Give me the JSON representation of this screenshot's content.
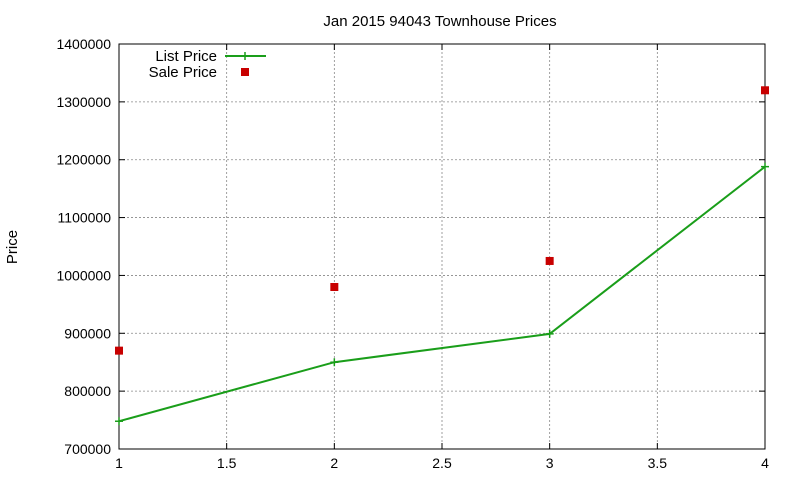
{
  "chart_data": {
    "type": "line",
    "title": "Jan 2015 94043 Townhouse Prices",
    "xlabel": "",
    "ylabel": "Price",
    "xlim": [
      1,
      4
    ],
    "ylim": [
      700000,
      1400000
    ],
    "xticks": [
      1,
      1.5,
      2,
      2.5,
      3,
      3.5,
      4
    ],
    "xtick_labels": [
      "1",
      "1.5",
      "2",
      "2.5",
      "3",
      "3.5",
      "4"
    ],
    "yticks": [
      700000,
      800000,
      900000,
      1000000,
      1100000,
      1200000,
      1300000,
      1400000
    ],
    "ytick_labels": [
      "700000",
      "800000",
      "900000",
      "1000000",
      "1100000",
      "1200000",
      "1300000",
      "1400000"
    ],
    "grid": true,
    "legend_position": "top-left",
    "series": [
      {
        "name": "List Price",
        "style": "line-points",
        "color": "#1a9e1a",
        "marker": "plus",
        "x": [
          1,
          2,
          3,
          4
        ],
        "y": [
          748000,
          850000,
          899000,
          1188000
        ]
      },
      {
        "name": "Sale Price",
        "style": "points",
        "color": "#c80000",
        "marker": "square",
        "x": [
          1,
          2,
          3,
          4
        ],
        "y": [
          870000,
          980000,
          1025000,
          1320000
        ]
      }
    ]
  }
}
